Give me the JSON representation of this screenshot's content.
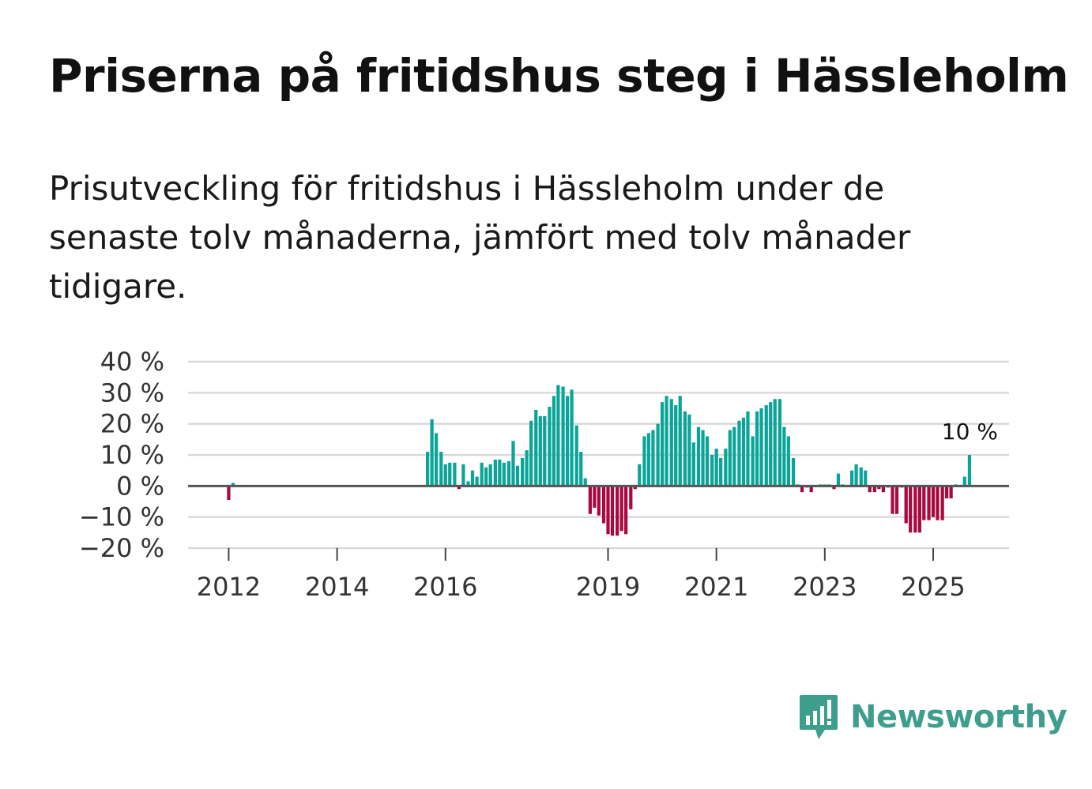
{
  "title": "Priserna på fritidshus steg i Hässleholm",
  "subtitle": "Prisutveckling för fritidshus i Hässleholm under de senaste tolv månaderna, jämfört med tolv månader tidigare.",
  "brand": {
    "name": "Newsworthy"
  },
  "colors": {
    "positive": "#0aa598",
    "negative": "#a8093f",
    "grid": "#d9d9d9",
    "zero": "#555555",
    "brand": "#3e9e8e"
  },
  "chart_data": {
    "type": "bar",
    "title": "Priserna på fritidshus steg i Hässleholm",
    "xlabel": "",
    "ylabel": "",
    "ylim": [
      -20,
      40
    ],
    "y_ticks": [
      40,
      30,
      20,
      10,
      0,
      -10,
      -20
    ],
    "y_tick_labels": [
      "40 %",
      "30 %",
      "20 %",
      "10 %",
      "0 %",
      "−10 %",
      "−20 %"
    ],
    "x_range": [
      2011.25,
      2026.4
    ],
    "x_ticks": [
      2012,
      2014,
      2016,
      2019,
      2021,
      2023,
      2025
    ],
    "x_tick_labels": [
      "2012",
      "2014",
      "2016",
      "2019",
      "2021",
      "2023",
      "2025"
    ],
    "annotation": {
      "label": "10 %",
      "x": 2025.67,
      "y": 10
    },
    "series": [
      {
        "name": "Prisutveckling",
        "points": [
          [
            2012.0,
            -4.5
          ],
          [
            2012.08,
            1.0
          ],
          [
            2015.67,
            11
          ],
          [
            2015.75,
            21.5
          ],
          [
            2015.83,
            17
          ],
          [
            2015.92,
            11
          ],
          [
            2016.0,
            7
          ],
          [
            2016.08,
            7.5
          ],
          [
            2016.17,
            7.5
          ],
          [
            2016.25,
            -1
          ],
          [
            2016.33,
            7
          ],
          [
            2016.42,
            1.5
          ],
          [
            2016.5,
            5
          ],
          [
            2016.58,
            3
          ],
          [
            2016.67,
            7.5
          ],
          [
            2016.75,
            6
          ],
          [
            2016.83,
            7
          ],
          [
            2016.92,
            8.5
          ],
          [
            2017.0,
            8.5
          ],
          [
            2017.08,
            7.5
          ],
          [
            2017.17,
            8
          ],
          [
            2017.25,
            14.5
          ],
          [
            2017.33,
            6.5
          ],
          [
            2017.42,
            9
          ],
          [
            2017.5,
            11.5
          ],
          [
            2017.58,
            21
          ],
          [
            2017.67,
            24.5
          ],
          [
            2017.75,
            22.5
          ],
          [
            2017.83,
            22.5
          ],
          [
            2017.92,
            25.5
          ],
          [
            2018.0,
            29
          ],
          [
            2018.08,
            32.5
          ],
          [
            2018.17,
            32
          ],
          [
            2018.25,
            29
          ],
          [
            2018.33,
            31
          ],
          [
            2018.42,
            19.5
          ],
          [
            2018.5,
            11
          ],
          [
            2018.58,
            2.5
          ],
          [
            2018.67,
            -9
          ],
          [
            2018.75,
            -7
          ],
          [
            2018.83,
            -9.5
          ],
          [
            2018.92,
            -12
          ],
          [
            2019.0,
            -15.5
          ],
          [
            2019.08,
            -16
          ],
          [
            2019.17,
            -16
          ],
          [
            2019.25,
            -14.5
          ],
          [
            2019.33,
            -15.5
          ],
          [
            2019.42,
            -7.5
          ],
          [
            2019.5,
            -1
          ],
          [
            2019.58,
            7
          ],
          [
            2019.67,
            16
          ],
          [
            2019.75,
            17
          ],
          [
            2019.83,
            18
          ],
          [
            2019.92,
            20
          ],
          [
            2020.0,
            27
          ],
          [
            2020.08,
            29
          ],
          [
            2020.17,
            28
          ],
          [
            2020.25,
            26
          ],
          [
            2020.33,
            29
          ],
          [
            2020.42,
            24
          ],
          [
            2020.5,
            23
          ],
          [
            2020.58,
            14
          ],
          [
            2020.67,
            19
          ],
          [
            2020.75,
            18
          ],
          [
            2020.83,
            16
          ],
          [
            2020.92,
            10
          ],
          [
            2021.0,
            12
          ],
          [
            2021.08,
            9
          ],
          [
            2021.17,
            12
          ],
          [
            2021.25,
            18
          ],
          [
            2021.33,
            19
          ],
          [
            2021.42,
            21
          ],
          [
            2021.5,
            22
          ],
          [
            2021.58,
            24
          ],
          [
            2021.67,
            16
          ],
          [
            2021.75,
            24
          ],
          [
            2021.83,
            25
          ],
          [
            2021.92,
            26
          ],
          [
            2022.0,
            27
          ],
          [
            2022.08,
            28
          ],
          [
            2022.17,
            28
          ],
          [
            2022.25,
            19
          ],
          [
            2022.33,
            16
          ],
          [
            2022.42,
            9
          ],
          [
            2022.5,
            0.5
          ],
          [
            2022.58,
            -2
          ],
          [
            2022.67,
            -0.5
          ],
          [
            2022.75,
            -2
          ],
          [
            2022.83,
            0
          ],
          [
            2022.92,
            0.5
          ],
          [
            2023.0,
            0.5
          ],
          [
            2023.08,
            0.5
          ],
          [
            2023.17,
            -1
          ],
          [
            2023.25,
            4
          ],
          [
            2023.33,
            0.5
          ],
          [
            2023.42,
            0
          ],
          [
            2023.5,
            5
          ],
          [
            2023.58,
            7
          ],
          [
            2023.67,
            6
          ],
          [
            2023.75,
            5
          ],
          [
            2023.83,
            -2
          ],
          [
            2023.92,
            -2
          ],
          [
            2024.0,
            -1
          ],
          [
            2024.08,
            -2
          ],
          [
            2024.17,
            -0.5
          ],
          [
            2024.25,
            -9
          ],
          [
            2024.33,
            -9
          ],
          [
            2024.42,
            -0.5
          ],
          [
            2024.5,
            -12
          ],
          [
            2024.58,
            -15
          ],
          [
            2024.67,
            -15
          ],
          [
            2024.75,
            -15
          ],
          [
            2024.83,
            -11
          ],
          [
            2024.92,
            -11
          ],
          [
            2025.0,
            -10
          ],
          [
            2025.08,
            -11
          ],
          [
            2025.17,
            -11
          ],
          [
            2025.25,
            -4
          ],
          [
            2025.33,
            -4
          ],
          [
            2025.42,
            0.5
          ],
          [
            2025.5,
            0
          ],
          [
            2025.58,
            3
          ],
          [
            2025.67,
            10
          ]
        ]
      }
    ]
  }
}
